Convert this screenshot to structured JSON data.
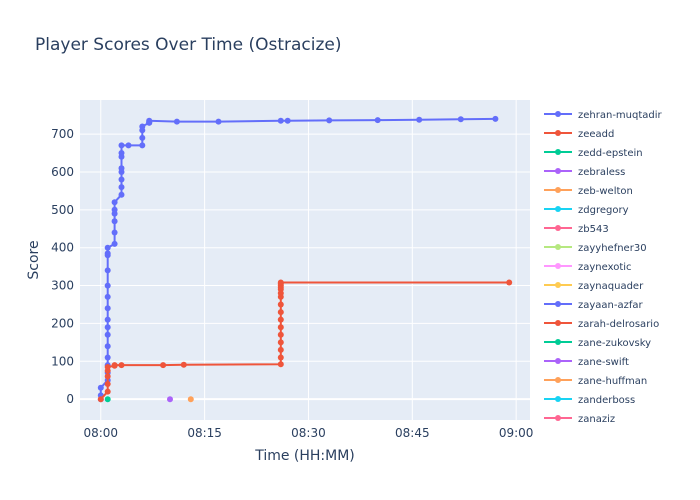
{
  "chart_data": {
    "type": "scatter",
    "mode": "lines+markers",
    "title": "Player Scores Over Time (Ostracize)",
    "xlabel": "Time (HH:MM)",
    "ylabel": "Score",
    "x_ticks": [
      "08:00",
      "08:15",
      "08:30",
      "08:45",
      "09:00"
    ],
    "xlim": [
      "07:57",
      "09:02"
    ],
    "y_ticks": [
      0,
      100,
      200,
      300,
      400,
      500,
      600,
      700
    ],
    "ylim": [
      -55,
      790
    ],
    "grid": true,
    "legend_placement": "right",
    "series": [
      {
        "name": "zehran-muqtadir",
        "color": "#636efa",
        "x": [
          "08:00",
          "08:00",
          "08:00",
          "08:01",
          "08:01",
          "08:01",
          "08:01",
          "08:01",
          "08:01",
          "08:01",
          "08:01",
          "08:01",
          "08:01",
          "08:01",
          "08:01",
          "08:01",
          "08:01",
          "08:01",
          "08:02",
          "08:02",
          "08:02",
          "08:02",
          "08:02",
          "08:02",
          "08:03",
          "08:03",
          "08:03",
          "08:03",
          "08:03",
          "08:03",
          "08:03",
          "08:03",
          "08:04",
          "08:06",
          "08:06",
          "08:06",
          "08:06",
          "08:07",
          "08:07",
          "08:07",
          "08:07",
          "08:11",
          "08:17",
          "08:26",
          "08:27",
          "08:33",
          "08:40",
          "08:46",
          "08:52",
          "08:57"
        ],
        "y": [
          0,
          10,
          30,
          50,
          70,
          90,
          110,
          140,
          170,
          190,
          210,
          240,
          270,
          300,
          340,
          380,
          385,
          400,
          410,
          440,
          470,
          490,
          500,
          520,
          540,
          560,
          580,
          600,
          610,
          640,
          650,
          670,
          670,
          670,
          690,
          710,
          720,
          730,
          730,
          732,
          735,
          733,
          733,
          735,
          735,
          736,
          737,
          738,
          739,
          740
        ]
      },
      {
        "name": "zeeadd",
        "color": "#ef553b",
        "x": [
          "08:00",
          "08:01",
          "08:01",
          "08:01",
          "08:01",
          "08:01",
          "08:02",
          "08:02",
          "08:03",
          "08:09",
          "08:12",
          "08:26",
          "08:26",
          "08:26",
          "08:26",
          "08:26",
          "08:26",
          "08:26",
          "08:26",
          "08:26",
          "08:26",
          "08:26",
          "08:26",
          "08:26",
          "08:26",
          "08:26",
          "08:26",
          "08:59"
        ],
        "y": [
          0,
          20,
          40,
          60,
          75,
          85,
          88,
          90,
          90,
          90,
          91,
          92,
          110,
          130,
          150,
          170,
          190,
          210,
          230,
          250,
          270,
          280,
          290,
          295,
          300,
          305,
          308,
          308
        ]
      },
      {
        "name": "zedd-epstein",
        "color": "#00cc96",
        "x": [
          "08:01"
        ],
        "y": [
          0
        ]
      },
      {
        "name": "zebraless",
        "color": "#ab63fa",
        "x": [
          "08:10"
        ],
        "y": [
          0
        ]
      },
      {
        "name": "zeb-welton",
        "color": "#ffa15a",
        "x": [
          "08:13"
        ],
        "y": [
          0
        ]
      },
      {
        "name": "zdgregory",
        "color": "#19d3f3",
        "x": [],
        "y": []
      },
      {
        "name": "zb543",
        "color": "#ff6692",
        "x": [],
        "y": []
      },
      {
        "name": "zayyhefner30",
        "color": "#b6e880",
        "x": [],
        "y": []
      },
      {
        "name": "zaynexotic",
        "color": "#ff97ff",
        "x": [],
        "y": []
      },
      {
        "name": "zaynaquader",
        "color": "#fecb52",
        "x": [],
        "y": []
      },
      {
        "name": "zayaan-azfar",
        "color": "#636efa",
        "x": [],
        "y": []
      },
      {
        "name": "zarah-delrosario",
        "color": "#ef553b",
        "x": [],
        "y": []
      },
      {
        "name": "zane-zukovsky",
        "color": "#00cc96",
        "x": [],
        "y": []
      },
      {
        "name": "zane-swift",
        "color": "#ab63fa",
        "x": [],
        "y": []
      },
      {
        "name": "zane-huffman",
        "color": "#ffa15a",
        "x": [],
        "y": []
      },
      {
        "name": "zanderboss",
        "color": "#19d3f3",
        "x": [],
        "y": []
      },
      {
        "name": "zanaziz",
        "color": "#ff6692",
        "x": [],
        "y": []
      }
    ]
  }
}
